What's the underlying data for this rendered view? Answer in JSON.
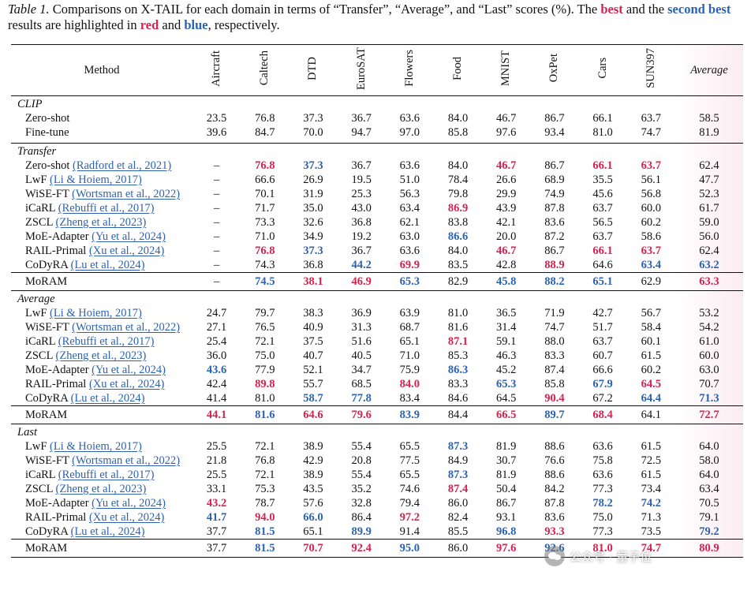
{
  "caption": {
    "label": "Table 1.",
    "text1": " Comparisons on X-TAIL for each domain in terms of “Transfer”, “Average”, and “Last” scores (%). The ",
    "best_word": "best",
    "text2": " and the ",
    "second_word": "second best",
    "text3": " results are highlighted in ",
    "red_word": "red",
    "text4": " and ",
    "blue_word": "blue",
    "text5": ", respectively."
  },
  "header": {
    "method": "Method",
    "domains": [
      "Aircraft",
      "Caltech",
      "DTD",
      "EuroSAT",
      "Flowers",
      "Food",
      "MNIST",
      "OxPet",
      "Cars",
      "SUN397"
    ],
    "average": "Average"
  },
  "colors": {
    "best": "#d6224f",
    "second": "#2b62b3"
  },
  "sections": [
    {
      "title": "CLIP",
      "rows": [
        {
          "method": "Zero-shot",
          "cite": "",
          "values": [
            "23.5",
            "76.8",
            "37.3",
            "36.7",
            "63.6",
            "84.0",
            "46.7",
            "86.7",
            "66.1",
            "63.7",
            "58.5"
          ],
          "marks": [
            "",
            "",
            "",
            "",
            "",
            "",
            "",
            "",
            "",
            "",
            ""
          ]
        },
        {
          "method": "Fine-tune",
          "cite": "",
          "values": [
            "39.6",
            "84.7",
            "70.0",
            "94.7",
            "97.0",
            "85.8",
            "97.6",
            "93.4",
            "81.0",
            "74.7",
            "81.9"
          ],
          "marks": [
            "",
            "",
            "",
            "",
            "",
            "",
            "",
            "",
            "",
            "",
            ""
          ]
        }
      ]
    },
    {
      "title": "Transfer",
      "rows": [
        {
          "method": "Zero-shot ",
          "cite": "(Radford et al., 2021)",
          "values": [
            "–",
            "76.8",
            "37.3",
            "36.7",
            "63.6",
            "84.0",
            "46.7",
            "86.7",
            "66.1",
            "63.7",
            "62.4"
          ],
          "marks": [
            "",
            "b",
            "s",
            "",
            "",
            "",
            "b",
            "",
            "b",
            "b",
            ""
          ]
        },
        {
          "method": "LwF ",
          "cite": "(Li & Hoiem, 2017)",
          "values": [
            "–",
            "66.6",
            "26.9",
            "19.5",
            "51.0",
            "78.4",
            "26.6",
            "68.9",
            "35.5",
            "56.1",
            "47.7"
          ],
          "marks": [
            "",
            "",
            "",
            "",
            "",
            "",
            "",
            "",
            "",
            "",
            ""
          ]
        },
        {
          "method": "WiSE-FT ",
          "cite": "(Wortsman et al., 2022)",
          "values": [
            "–",
            "70.1",
            "31.9",
            "25.3",
            "56.3",
            "79.8",
            "29.9",
            "74.9",
            "45.6",
            "56.8",
            "52.3"
          ],
          "marks": [
            "",
            "",
            "",
            "",
            "",
            "",
            "",
            "",
            "",
            "",
            ""
          ]
        },
        {
          "method": "iCaRL ",
          "cite": "(Rebuffi et al., 2017)",
          "values": [
            "–",
            "71.7",
            "35.0",
            "43.0",
            "63.4",
            "86.9",
            "43.9",
            "87.8",
            "63.7",
            "60.0",
            "61.7"
          ],
          "marks": [
            "",
            "",
            "",
            "",
            "",
            "b",
            "",
            "",
            "",
            "",
            ""
          ]
        },
        {
          "method": "ZSCL ",
          "cite": "(Zheng et al., 2023)",
          "values": [
            "–",
            "73.3",
            "32.6",
            "36.8",
            "62.1",
            "83.8",
            "42.1",
            "83.6",
            "56.5",
            "60.2",
            "59.0"
          ],
          "marks": [
            "",
            "",
            "",
            "",
            "",
            "",
            "",
            "",
            "",
            "",
            ""
          ]
        },
        {
          "method": "MoE-Adapter ",
          "cite": "(Yu et al., 2024)",
          "values": [
            "–",
            "71.0",
            "34.9",
            "19.2",
            "63.0",
            "86.6",
            "20.0",
            "87.2",
            "63.7",
            "58.6",
            "56.0"
          ],
          "marks": [
            "",
            "",
            "",
            "",
            "",
            "s",
            "",
            "",
            "",
            "",
            ""
          ]
        },
        {
          "method": "RAIL-Primal ",
          "cite": "(Xu et al., 2024)",
          "values": [
            "–",
            "76.8",
            "37.3",
            "36.7",
            "63.6",
            "84.0",
            "46.7",
            "86.7",
            "66.1",
            "63.7",
            "62.4"
          ],
          "marks": [
            "",
            "b",
            "s",
            "",
            "",
            "",
            "b",
            "",
            "b",
            "b",
            ""
          ]
        },
        {
          "method": "CoDyRA ",
          "cite": "(Lu et al., 2024)",
          "values": [
            "–",
            "74.3",
            "36.8",
            "44.2",
            "69.9",
            "83.5",
            "42.8",
            "88.9",
            "64.6",
            "63.4",
            "63.2"
          ],
          "marks": [
            "",
            "",
            "",
            "s",
            "b",
            "",
            "",
            "b",
            "",
            "s",
            "s"
          ]
        }
      ],
      "moram": {
        "method": "MoRAM",
        "values": [
          "–",
          "74.5",
          "38.1",
          "46.9",
          "65.3",
          "82.9",
          "45.8",
          "88.2",
          "65.1",
          "62.9",
          "63.3"
        ],
        "marks": [
          "",
          "s",
          "b",
          "b",
          "s",
          "",
          "s",
          "s",
          "s",
          "",
          "b"
        ]
      }
    },
    {
      "title": "Average",
      "rows": [
        {
          "method": "LwF ",
          "cite": "(Li & Hoiem, 2017)",
          "values": [
            "24.7",
            "79.7",
            "38.3",
            "36.9",
            "63.9",
            "81.0",
            "36.5",
            "71.9",
            "42.7",
            "56.7",
            "53.2"
          ],
          "marks": [
            "",
            "",
            "",
            "",
            "",
            "",
            "",
            "",
            "",
            "",
            ""
          ]
        },
        {
          "method": "WiSE-FT ",
          "cite": "(Wortsman et al., 2022)",
          "values": [
            "27.1",
            "76.5",
            "40.9",
            "31.3",
            "68.7",
            "81.6",
            "31.4",
            "74.7",
            "51.7",
            "58.4",
            "54.2"
          ],
          "marks": [
            "",
            "",
            "",
            "",
            "",
            "",
            "",
            "",
            "",
            "",
            ""
          ]
        },
        {
          "method": "iCaRL ",
          "cite": "(Rebuffi et al., 2017)",
          "values": [
            "25.4",
            "72.1",
            "37.5",
            "51.6",
            "65.1",
            "87.1",
            "59.1",
            "88.0",
            "63.7",
            "60.1",
            "61.0"
          ],
          "marks": [
            "",
            "",
            "",
            "",
            "",
            "b",
            "",
            "",
            "",
            "",
            ""
          ]
        },
        {
          "method": "ZSCL ",
          "cite": "(Zheng et al., 2023)",
          "values": [
            "36.0",
            "75.0",
            "40.7",
            "40.5",
            "71.0",
            "85.3",
            "46.3",
            "83.3",
            "60.7",
            "61.5",
            "60.0"
          ],
          "marks": [
            "",
            "",
            "",
            "",
            "",
            "",
            "",
            "",
            "",
            "",
            ""
          ]
        },
        {
          "method": "MoE-Adapter ",
          "cite": "(Yu et al., 2024)",
          "values": [
            "43.6",
            "77.9",
            "52.1",
            "34.7",
            "75.9",
            "86.3",
            "45.2",
            "87.4",
            "66.6",
            "60.2",
            "63.0"
          ],
          "marks": [
            "s",
            "",
            "",
            "",
            "",
            "s",
            "",
            "",
            "",
            "",
            ""
          ]
        },
        {
          "method": "RAIL-Primal ",
          "cite": "(Xu et al., 2024)",
          "values": [
            "42.4",
            "89.8",
            "55.7",
            "68.5",
            "84.0",
            "83.3",
            "65.3",
            "85.8",
            "67.9",
            "64.5",
            "70.7"
          ],
          "marks": [
            "",
            "b",
            "",
            "",
            "b",
            "",
            "s",
            "",
            "s",
            "b",
            ""
          ]
        },
        {
          "method": "CoDyRA ",
          "cite": "(Lu et al., 2024)",
          "values": [
            "41.4",
            "81.0",
            "58.7",
            "77.8",
            "83.4",
            "84.6",
            "64.5",
            "90.4",
            "67.2",
            "64.4",
            "71.3"
          ],
          "marks": [
            "",
            "",
            "s",
            "s",
            "",
            "",
            "",
            "b",
            "",
            "s",
            "s"
          ]
        }
      ],
      "moram": {
        "method": "MoRAM",
        "values": [
          "44.1",
          "81.6",
          "64.6",
          "79.6",
          "83.9",
          "84.4",
          "66.5",
          "89.7",
          "68.4",
          "64.1",
          "72.7"
        ],
        "marks": [
          "b",
          "s",
          "b",
          "b",
          "s",
          "",
          "b",
          "s",
          "b",
          "",
          "b"
        ]
      }
    },
    {
      "title": "Last",
      "rows": [
        {
          "method": "LwF ",
          "cite": "(Li & Hoiem, 2017)",
          "values": [
            "25.5",
            "72.1",
            "38.9",
            "55.4",
            "65.5",
            "87.3",
            "81.9",
            "88.6",
            "63.6",
            "61.5",
            "64.0"
          ],
          "marks": [
            "",
            "",
            "",
            "",
            "",
            "s",
            "",
            "",
            "",
            "",
            ""
          ]
        },
        {
          "method": "WiSE-FT ",
          "cite": "(Wortsman et al., 2022)",
          "values": [
            "21.8",
            "76.8",
            "42.9",
            "20.8",
            "77.5",
            "84.9",
            "30.7",
            "76.6",
            "75.8",
            "72.5",
            "58.0"
          ],
          "marks": [
            "",
            "",
            "",
            "",
            "",
            "",
            "",
            "",
            "",
            "",
            ""
          ]
        },
        {
          "method": "iCaRL ",
          "cite": "(Rebuffi et al., 2017)",
          "values": [
            "25.5",
            "72.1",
            "38.9",
            "55.4",
            "65.5",
            "87.3",
            "81.9",
            "88.6",
            "63.6",
            "61.5",
            "64.0"
          ],
          "marks": [
            "",
            "",
            "",
            "",
            "",
            "s",
            "",
            "",
            "",
            "",
            ""
          ]
        },
        {
          "method": "ZSCL ",
          "cite": "(Zheng et al., 2023)",
          "values": [
            "33.1",
            "75.3",
            "43.5",
            "35.2",
            "74.6",
            "87.4",
            "50.4",
            "84.2",
            "77.3",
            "73.4",
            "63.4"
          ],
          "marks": [
            "",
            "",
            "",
            "",
            "",
            "b",
            "",
            "",
            "",
            "",
            ""
          ]
        },
        {
          "method": "MoE-Adapter ",
          "cite": "(Yu et al., 2024)",
          "values": [
            "43.2",
            "78.7",
            "57.6",
            "32.8",
            "79.4",
            "86.0",
            "86.7",
            "87.8",
            "78.2",
            "74.2",
            "70.5"
          ],
          "marks": [
            "b",
            "",
            "",
            "",
            "",
            "",
            "",
            "",
            "s",
            "s",
            ""
          ]
        },
        {
          "method": "RAIL-Primal ",
          "cite": "(Xu et al., 2024)",
          "values": [
            "41.7",
            "94.0",
            "66.0",
            "86.4",
            "97.2",
            "82.4",
            "93.1",
            "83.6",
            "75.0",
            "71.3",
            "79.1"
          ],
          "marks": [
            "s",
            "b",
            "s",
            "",
            "b",
            "",
            "",
            "",
            "",
            "",
            ""
          ]
        },
        {
          "method": "CoDyRA ",
          "cite": "(Lu et al., 2024)",
          "values": [
            "37.7",
            "81.5",
            "65.1",
            "89.9",
            "91.4",
            "85.5",
            "96.8",
            "93.3",
            "77.3",
            "73.5",
            "79.2"
          ],
          "marks": [
            "",
            "s",
            "",
            "s",
            "",
            "",
            "s",
            "b",
            "",
            "",
            "s"
          ]
        }
      ],
      "moram": {
        "method": "MoRAM",
        "values": [
          "37.7",
          "81.5",
          "70.7",
          "92.4",
          "95.0",
          "86.0",
          "97.6",
          "92.6",
          "81.0",
          "74.7",
          "80.9"
        ],
        "marks": [
          "",
          "s",
          "b",
          "b",
          "s",
          "",
          "b",
          "s",
          "b",
          "b",
          "b"
        ]
      }
    }
  ],
  "watermark": {
    "text": "公众号 · 量子位",
    "icon": "wechat-icon"
  }
}
